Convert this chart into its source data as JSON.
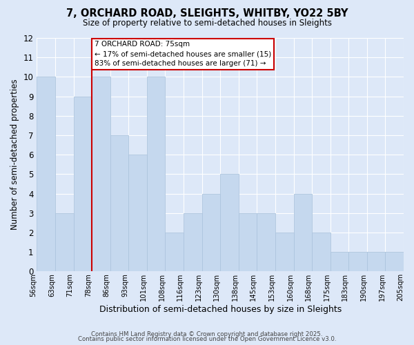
{
  "title": "7, ORCHARD ROAD, SLEIGHTS, WHITBY, YO22 5BY",
  "subtitle": "Size of property relative to semi-detached houses in Sleights",
  "xlabel": "Distribution of semi-detached houses by size in Sleights",
  "ylabel": "Number of semi-detached properties",
  "bin_labels": [
    "56sqm",
    "63sqm",
    "71sqm",
    "78sqm",
    "86sqm",
    "93sqm",
    "101sqm",
    "108sqm",
    "116sqm",
    "123sqm",
    "130sqm",
    "138sqm",
    "145sqm",
    "153sqm",
    "160sqm",
    "168sqm",
    "175sqm",
    "183sqm",
    "190sqm",
    "197sqm",
    "205sqm"
  ],
  "counts": [
    10,
    3,
    9,
    10,
    7,
    6,
    10,
    2,
    3,
    4,
    5,
    3,
    3,
    2,
    4,
    2,
    1,
    1,
    1,
    1
  ],
  "bar_color": "#c5d8ee",
  "bar_edge_color": "#adc4de",
  "marker_bin": 2,
  "marker_color": "#cc0000",
  "annotation_title": "7 ORCHARD ROAD: 75sqm",
  "annotation_line1": "← 17% of semi-detached houses are smaller (15)",
  "annotation_line2": "83% of semi-detached houses are larger (71) →",
  "annotation_box_color": "#ffffff",
  "annotation_box_edge": "#cc0000",
  "ylim": [
    0,
    12
  ],
  "yticks": [
    0,
    1,
    2,
    3,
    4,
    5,
    6,
    7,
    8,
    9,
    10,
    11,
    12
  ],
  "background_color": "#dde8f8",
  "grid_color": "#ffffff",
  "footer1": "Contains HM Land Registry data © Crown copyright and database right 2025.",
  "footer2": "Contains public sector information licensed under the Open Government Licence v3.0."
}
